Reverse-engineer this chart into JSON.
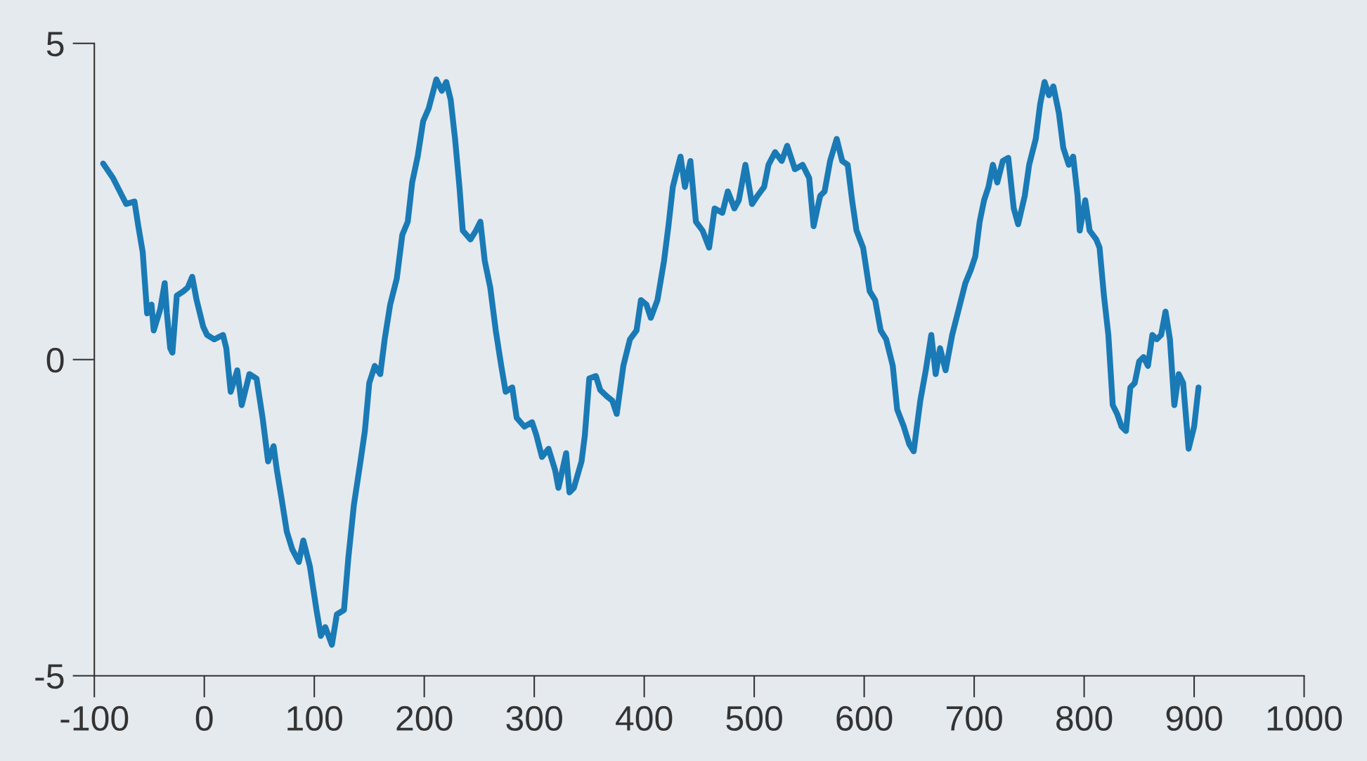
{
  "chart_data": {
    "type": "line",
    "xlim": [
      -100,
      1000
    ],
    "ylim": [
      -5,
      5
    ],
    "xticks": [
      -100,
      0,
      100,
      200,
      300,
      400,
      500,
      600,
      700,
      800,
      900,
      1000
    ],
    "yticks": [
      -5,
      0,
      5
    ],
    "grid": false,
    "marker": "none",
    "line_style": "solid",
    "series": [
      {
        "color": "#1a7ab5",
        "x": [
          -92,
          -83,
          -71,
          -63.5,
          -60,
          -56,
          -52,
          -48,
          -46,
          -40,
          -36,
          -34,
          -31,
          -29,
          -25,
          -19,
          -15,
          -11,
          -7,
          -1,
          2.5,
          9,
          17,
          20,
          24,
          30,
          34,
          41,
          47.5,
          53,
          58,
          63,
          66,
          70,
          75,
          80,
          86,
          90,
          96,
          102,
          106,
          110,
          116,
          120.5,
          127,
          131,
          136,
          142,
          146,
          150,
          155,
          160,
          164,
          169,
          175,
          180,
          185,
          189,
          194,
          199,
          204,
          211,
          216,
          220,
          224,
          228,
          232,
          235,
          242,
          247,
          251,
          255,
          260,
          265,
          270,
          274,
          280,
          284,
          291,
          298,
          302,
          307,
          313,
          319,
          322,
          329,
          332,
          336,
          343,
          346,
          350,
          356,
          360,
          366,
          371,
          375,
          381,
          387,
          393,
          397,
          402,
          406,
          412,
          418,
          422,
          426,
          430,
          433,
          437,
          442,
          447,
          453,
          459,
          464,
          471,
          476,
          482,
          486,
          492,
          498,
          503,
          509,
          513,
          519,
          525,
          530,
          537,
          544,
          550,
          554,
          560,
          564,
          569,
          575,
          580,
          585,
          589,
          593,
          599,
          605,
          610,
          615,
          620,
          626,
          630,
          636,
          641,
          645,
          651,
          656,
          661,
          665,
          669,
          674,
          680,
          686,
          692,
          697,
          701,
          705,
          709,
          713,
          717,
          721,
          726,
          731,
          736,
          740,
          746,
          750,
          756,
          760,
          764,
          768,
          772,
          777,
          781,
          786,
          790,
          794,
          796,
          801,
          805,
          811,
          814,
          818,
          822,
          826,
          830,
          834,
          838,
          842,
          846,
          850,
          854,
          858,
          862,
          866,
          870,
          874,
          878,
          882,
          886,
          890,
          895,
          900,
          904
        ],
        "values": [
          3.1,
          2.87,
          2.46,
          2.5,
          2.11,
          1.7,
          0.73,
          0.87,
          0.46,
          0.8,
          1.21,
          0.73,
          0.18,
          0.11,
          1.01,
          1.08,
          1.14,
          1.31,
          0.94,
          0.52,
          0.39,
          0.32,
          0.39,
          0.18,
          -0.51,
          -0.17,
          -0.72,
          -0.23,
          -0.3,
          -0.92,
          -1.61,
          -1.37,
          -1.75,
          -2.17,
          -2.72,
          -3.0,
          -3.2,
          -2.86,
          -3.27,
          -3.96,
          -4.37,
          -4.23,
          -4.51,
          -4.03,
          -3.96,
          -3.13,
          -2.3,
          -1.61,
          -1.13,
          -0.37,
          -0.1,
          -0.23,
          0.32,
          0.87,
          1.28,
          1.97,
          2.18,
          2.8,
          3.21,
          3.77,
          3.97,
          4.43,
          4.25,
          4.39,
          4.11,
          3.49,
          2.73,
          2.04,
          1.9,
          2.04,
          2.18,
          1.56,
          1.14,
          0.46,
          -0.1,
          -0.51,
          -0.44,
          -0.92,
          -1.06,
          -0.99,
          -1.2,
          -1.54,
          -1.41,
          -1.75,
          -2.03,
          -1.48,
          -2.1,
          -2.03,
          -1.61,
          -1.2,
          -0.3,
          -0.26,
          -0.48,
          -0.58,
          -0.65,
          -0.86,
          -0.1,
          0.32,
          0.46,
          0.94,
          0.87,
          0.66,
          0.94,
          1.56,
          2.11,
          2.73,
          3.01,
          3.21,
          2.73,
          3.14,
          2.18,
          2.04,
          1.77,
          2.39,
          2.32,
          2.66,
          2.39,
          2.52,
          3.08,
          2.46,
          2.59,
          2.73,
          3.08,
          3.28,
          3.14,
          3.38,
          3.01,
          3.08,
          2.87,
          2.11,
          2.59,
          2.66,
          3.14,
          3.49,
          3.14,
          3.08,
          2.52,
          2.04,
          1.77,
          1.08,
          0.94,
          0.46,
          0.32,
          -0.1,
          -0.79,
          -1.06,
          -1.34,
          -1.45,
          -0.65,
          -0.17,
          0.39,
          -0.23,
          0.18,
          -0.17,
          0.39,
          0.8,
          1.21,
          1.42,
          1.63,
          2.18,
          2.52,
          2.73,
          3.08,
          2.8,
          3.14,
          3.19,
          2.39,
          2.14,
          2.59,
          3.08,
          3.49,
          4.04,
          4.39,
          4.18,
          4.32,
          3.9,
          3.35,
          3.08,
          3.21,
          2.59,
          2.04,
          2.52,
          2.04,
          1.9,
          1.77,
          1.01,
          0.39,
          -0.72,
          -0.86,
          -1.06,
          -1.13,
          -0.44,
          -0.37,
          -0.03,
          0.04,
          -0.1,
          0.39,
          0.32,
          0.39,
          0.76,
          0.32,
          -0.72,
          -0.23,
          -0.37,
          -1.41,
          -1.06,
          -0.44
        ]
      }
    ]
  }
}
